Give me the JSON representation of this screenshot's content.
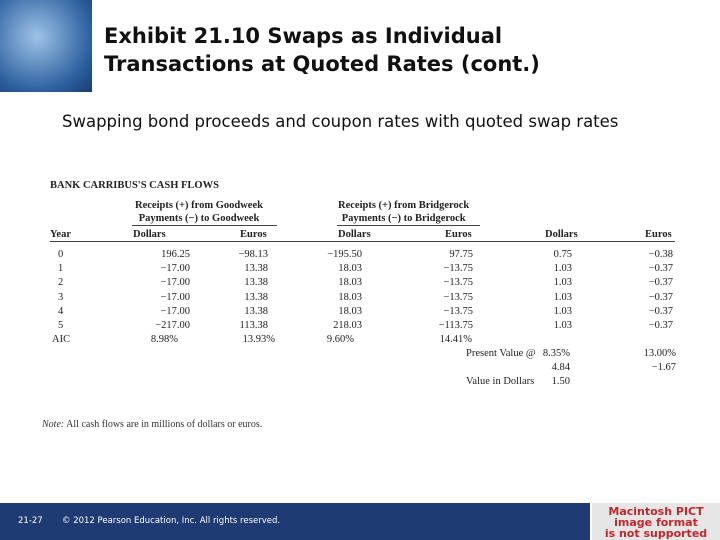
{
  "header": {
    "title_lines": [
      "Exhibit 21.10  Swaps as Individual",
      "Transactions at Quoted Rates (cont.)"
    ],
    "subtitle": "Swapping bond proceeds and coupon rates with quoted swap rates"
  },
  "table": {
    "title": "BANK CARRIBUS'S CASH FLOWS",
    "groups": [
      {
        "lines": [
          "Receipts (+) from Goodweek",
          "Payments (−) to Goodweek"
        ]
      },
      {
        "lines": [
          "Receipts (+) from Bridgerock",
          "Payments (−) to Bridgerock"
        ]
      }
    ],
    "columns": [
      "Year",
      "Dollars",
      "Euros",
      "Dollars",
      "Euros",
      "Dollars",
      "Euros"
    ],
    "rows": [
      [
        "0",
        "196.25",
        "−98.13",
        "−195.50",
        "97.75",
        "0.75",
        "−0.38"
      ],
      [
        "1",
        "−17.00",
        "13.38",
        "18.03",
        "−13.75",
        "1.03",
        "−0.37"
      ],
      [
        "2",
        "−17.00",
        "13.38",
        "18.03",
        "−13.75",
        "1.03",
        "−0.37"
      ],
      [
        "3",
        "−17.00",
        "13.38",
        "18.03",
        "−13.75",
        "1.03",
        "−0.37"
      ],
      [
        "4",
        "−17.00",
        "13.38",
        "18.03",
        "−13.75",
        "1.03",
        "−0.37"
      ],
      [
        "5",
        "−217.00",
        "113.38",
        "218.03",
        "−113.75",
        "1.03",
        "−0.37"
      ]
    ],
    "aic": {
      "label": "AIC",
      "values": [
        "8.98%",
        "13.93%",
        "9.60%",
        "14.41%"
      ]
    },
    "summary": [
      {
        "label": "Present Value @",
        "dollars": "8.35%",
        "euros": "13.00%"
      },
      {
        "dollars": "4.84",
        "euros": "−1.67"
      },
      {
        "label": "Value in Dollars",
        "dollars": "1.50"
      }
    ]
  },
  "note": {
    "prefix": "Note:",
    "text": "All cash flows are in millions of dollars or euros."
  },
  "footer": {
    "page": "21-27",
    "copyright": "© 2012 Pearson Education, Inc. All rights reserved."
  },
  "placeholder": {
    "lines": [
      "Macintosh PICT",
      "image format",
      "is not supported"
    ]
  }
}
